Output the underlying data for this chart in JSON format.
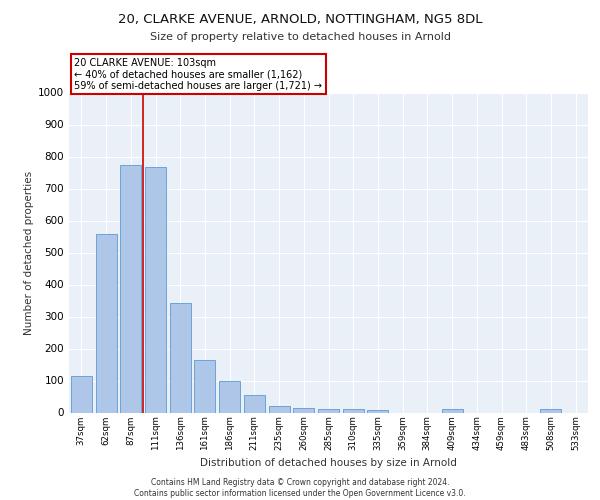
{
  "title1": "20, CLARKE AVENUE, ARNOLD, NOTTINGHAM, NG5 8DL",
  "title2": "Size of property relative to detached houses in Arnold",
  "xlabel": "Distribution of detached houses by size in Arnold",
  "ylabel": "Number of detached properties",
  "categories": [
    "37sqm",
    "62sqm",
    "87sqm",
    "111sqm",
    "136sqm",
    "161sqm",
    "186sqm",
    "211sqm",
    "235sqm",
    "260sqm",
    "285sqm",
    "310sqm",
    "335sqm",
    "359sqm",
    "384sqm",
    "409sqm",
    "434sqm",
    "459sqm",
    "483sqm",
    "508sqm",
    "533sqm"
  ],
  "values": [
    113,
    558,
    775,
    768,
    343,
    165,
    98,
    55,
    20,
    14,
    12,
    12,
    7,
    0,
    0,
    10,
    0,
    0,
    0,
    10,
    0
  ],
  "bar_color": "#aec6e8",
  "bar_edge_color": "#5b9bd5",
  "background_color": "#eaf0f8",
  "grid_color": "#ffffff",
  "vline_x": 2.5,
  "vline_color": "#cc0000",
  "annotation_text": "20 CLARKE AVENUE: 103sqm\n← 40% of detached houses are smaller (1,162)\n59% of semi-detached houses are larger (1,721) →",
  "annotation_box_color": "#ffffff",
  "annotation_box_edge_color": "#cc0000",
  "footer1": "Contains HM Land Registry data © Crown copyright and database right 2024.",
  "footer2": "Contains public sector information licensed under the Open Government Licence v3.0.",
  "ylim": [
    0,
    1000
  ],
  "yticks": [
    0,
    100,
    200,
    300,
    400,
    500,
    600,
    700,
    800,
    900,
    1000
  ]
}
